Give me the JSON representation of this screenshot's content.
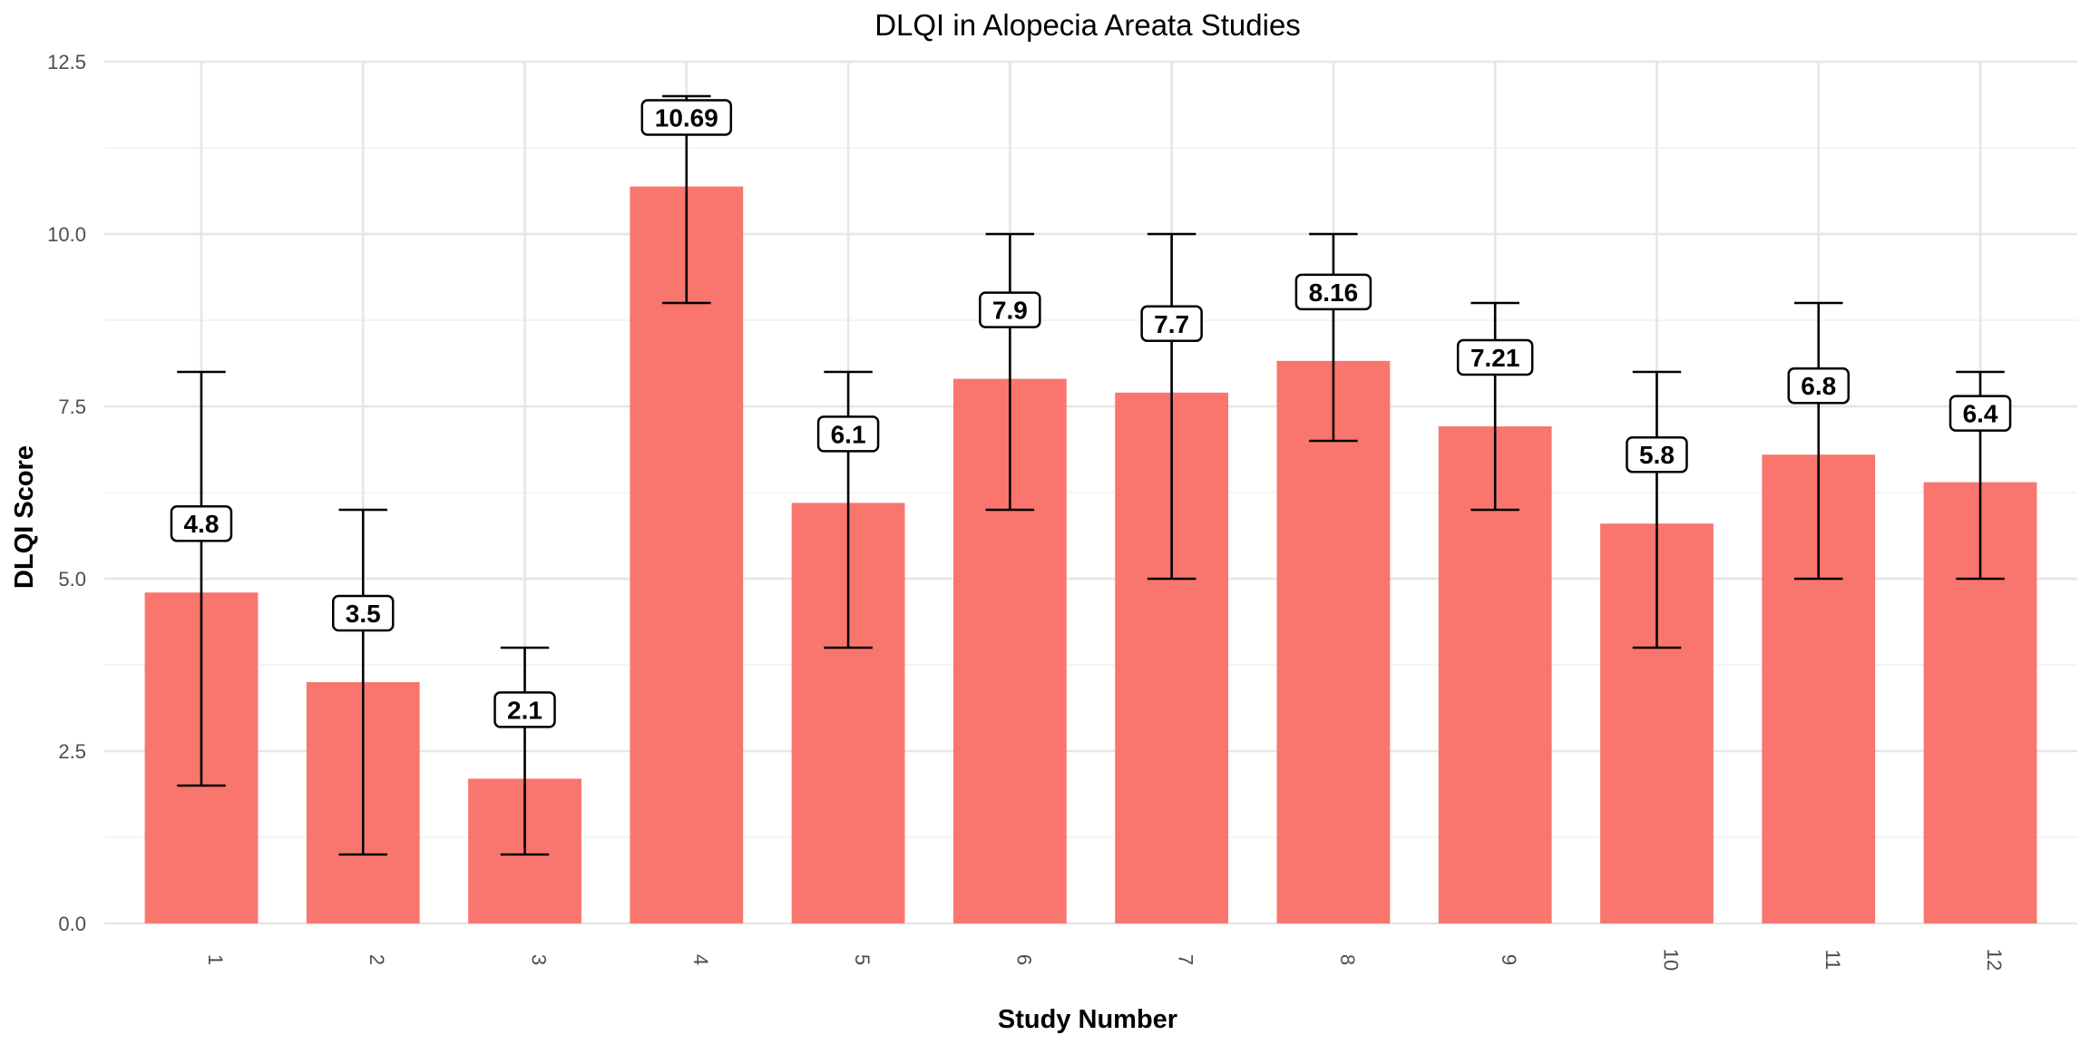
{
  "chart_data": {
    "type": "bar",
    "title": "DLQI in Alopecia Areata Studies",
    "xlabel": "Study Number",
    "ylabel": "DLQI Score",
    "categories": [
      "1",
      "2",
      "3",
      "4",
      "5",
      "6",
      "7",
      "8",
      "9",
      "10",
      "11",
      "12"
    ],
    "values": [
      4.8,
      3.5,
      2.1,
      10.69,
      6.1,
      7.9,
      7.7,
      8.16,
      7.21,
      5.8,
      6.8,
      6.4
    ],
    "data_labels": [
      "4.8",
      "3.5",
      "2.1",
      "10.69",
      "6.1",
      "7.9",
      "7.7",
      "8.16",
      "7.21",
      "5.8",
      "6.8",
      "6.4"
    ],
    "error_low": [
      2,
      1,
      1,
      9,
      4,
      6,
      5,
      7,
      6,
      4,
      5,
      5
    ],
    "error_high": [
      8,
      6,
      4,
      12,
      8,
      10,
      10,
      10,
      9,
      8,
      9,
      8
    ],
    "ylim": [
      0,
      12.5
    ],
    "yticks": [
      0,
      2.5,
      5,
      7.5,
      10,
      12.5
    ],
    "ytick_labels": [
      "0.0",
      "2.5",
      "5.0",
      "7.5",
      "10.0",
      "12.5"
    ],
    "grid": true,
    "legend": "none",
    "bar_color": "#F8766D"
  }
}
